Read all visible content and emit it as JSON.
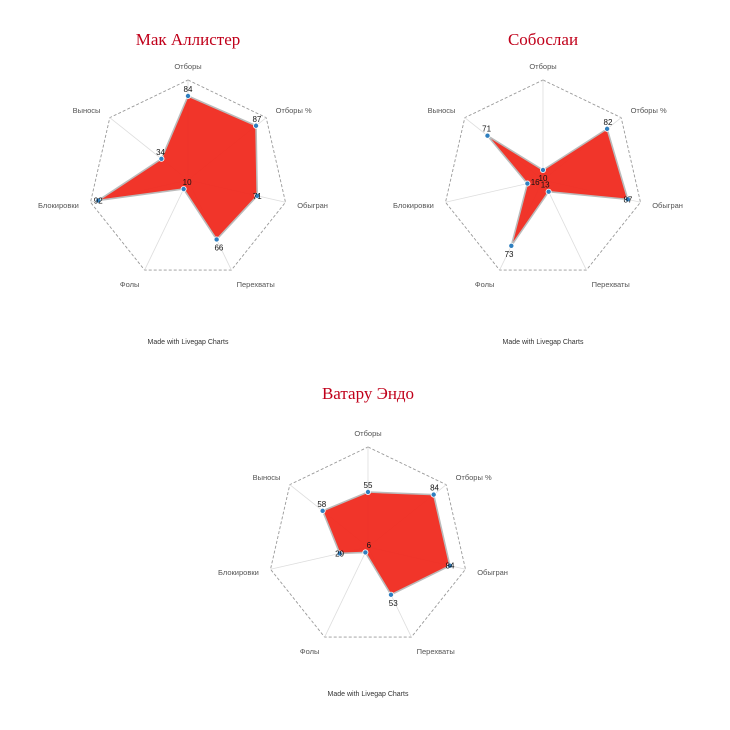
{
  "chart_data": [
    {
      "type": "radar",
      "title": "Мак Аллистер",
      "axes": [
        "Отборы",
        "Отборы %",
        "Обыгран",
        "Перехваты",
        "Фолы",
        "Блокировки",
        "Выносы"
      ],
      "values": [
        84,
        87,
        71,
        66,
        10,
        92,
        34
      ],
      "range": [
        0,
        100
      ],
      "credit": "Made with Livegap Charts"
    },
    {
      "type": "radar",
      "title": "Собослаи",
      "axes": [
        "Отборы",
        "Отборы %",
        "Обыгран",
        "Перехваты",
        "Фолы",
        "Блокировки",
        "Выносы"
      ],
      "values": [
        10,
        82,
        87,
        13,
        73,
        16,
        71
      ],
      "range": [
        0,
        100
      ],
      "credit": "Made with Livegap Charts"
    },
    {
      "type": "radar",
      "title": "Ватару Эндо",
      "axes": [
        "Отборы",
        "Отборы %",
        "Обыгран",
        "Перехваты",
        "Фолы",
        "Блокировки",
        "Выносы"
      ],
      "values": [
        55,
        84,
        84,
        53,
        6,
        29,
        58
      ],
      "range": [
        0,
        100
      ],
      "credit": "Made with Livegap Charts"
    }
  ],
  "colors": {
    "fill": "#f02a1f",
    "point": "#2f7fbf",
    "grid": "#999999",
    "spoke": "#dddddd",
    "title": "#c0001a"
  }
}
